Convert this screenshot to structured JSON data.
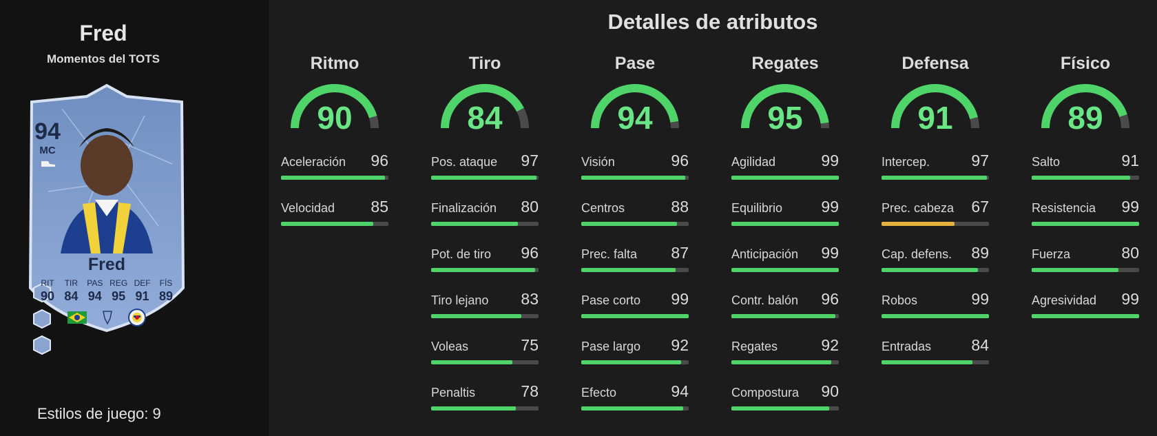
{
  "player": {
    "name": "Fred",
    "version": "Momentos del TOTS",
    "playstyles_label": "Estilos de juego:",
    "playstyles_count": "9"
  },
  "card": {
    "rating": "94",
    "position": "MC",
    "name": "Fred",
    "stats": [
      {
        "label": "RIT",
        "value": "90"
      },
      {
        "label": "TIR",
        "value": "84"
      },
      {
        "label": "PAS",
        "value": "94"
      },
      {
        "label": "REG",
        "value": "95"
      },
      {
        "label": "DEF",
        "value": "91"
      },
      {
        "label": "FÍS",
        "value": "89"
      }
    ],
    "colors": {
      "bg_top": "#6f8fc0",
      "bg_bottom": "#8fa8d8",
      "border": "#d8e2f2"
    }
  },
  "title": "Detalles de atributos",
  "categories": [
    {
      "name": "Ritmo",
      "value": 90,
      "attributes": [
        {
          "name": "Aceleración",
          "value": 96
        },
        {
          "name": "Velocidad",
          "value": 85
        }
      ]
    },
    {
      "name": "Tiro",
      "value": 84,
      "attributes": [
        {
          "name": "Pos. ataque",
          "value": 97
        },
        {
          "name": "Finalización",
          "value": 80
        },
        {
          "name": "Pot. de tiro",
          "value": 96
        },
        {
          "name": "Tiro lejano",
          "value": 83
        },
        {
          "name": "Voleas",
          "value": 75
        },
        {
          "name": "Penaltis",
          "value": 78
        }
      ]
    },
    {
      "name": "Pase",
      "value": 94,
      "attributes": [
        {
          "name": "Visión",
          "value": 96
        },
        {
          "name": "Centros",
          "value": 88
        },
        {
          "name": "Prec. falta",
          "value": 87
        },
        {
          "name": "Pase corto",
          "value": 99
        },
        {
          "name": "Pase largo",
          "value": 92
        },
        {
          "name": "Efecto",
          "value": 94
        }
      ]
    },
    {
      "name": "Regates",
      "value": 95,
      "attributes": [
        {
          "name": "Agilidad",
          "value": 99
        },
        {
          "name": "Equilibrio",
          "value": 99
        },
        {
          "name": "Anticipación",
          "value": 99
        },
        {
          "name": "Contr. balón",
          "value": 96
        },
        {
          "name": "Regates",
          "value": 92
        },
        {
          "name": "Compostura",
          "value": 90
        }
      ]
    },
    {
      "name": "Defensa",
      "value": 91,
      "attributes": [
        {
          "name": "Intercep.",
          "value": 97
        },
        {
          "name": "Prec. cabeza",
          "value": 67
        },
        {
          "name": "Cap. defens.",
          "value": 89
        },
        {
          "name": "Robos",
          "value": 99
        },
        {
          "name": "Entradas",
          "value": 84
        }
      ]
    },
    {
      "name": "Físico",
      "value": 89,
      "attributes": [
        {
          "name": "Salto",
          "value": 91
        },
        {
          "name": "Resistencia",
          "value": 99
        },
        {
          "name": "Fuerza",
          "value": 80
        },
        {
          "name": "Agresividad",
          "value": 99
        }
      ]
    }
  ],
  "colors": {
    "high": "#4fd46a",
    "mid": "#e3b23c",
    "track": "#4a4a4a",
    "gauge_text": "#6ae585"
  }
}
